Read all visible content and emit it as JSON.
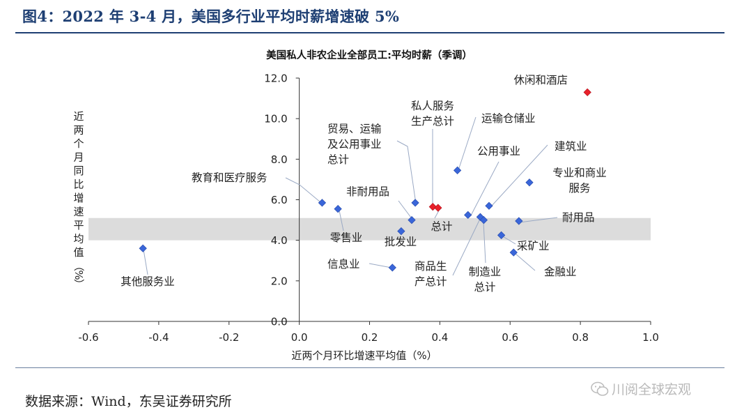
{
  "figure_title": "图4：2022 年 3-4 月，美国多行业平均时薪增速破 5%",
  "source": "数据来源：Wind，东吴证券研究所",
  "watermark": "川阅全球宏观",
  "chart_data": {
    "type": "scatter",
    "title": "美国私人非农企业全部员工:平均时薪（季调）",
    "xlabel": "近两个月环比增速平均值（%）",
    "ylabel": "近两个月同比增速平均值（%）",
    "xlim": [
      -0.6,
      1.0
    ],
    "ylim": [
      0.0,
      12.0
    ],
    "x_ticks": [
      "-0.6",
      "-0.4",
      "-0.2",
      "0.0",
      "0.2",
      "0.4",
      "0.6",
      "0.8",
      "1.0"
    ],
    "y_ticks": [
      "0.0",
      "2.0",
      "4.0",
      "6.0",
      "8.0",
      "10.0",
      "12.0"
    ],
    "band": [
      4.0,
      5.1
    ],
    "band_color": "#dcdcdc",
    "colors": {
      "normal": "#3a66d9",
      "highlight": "#e8202a"
    },
    "points": [
      {
        "label": "休闲和酒店",
        "x": 0.82,
        "y": 11.3,
        "highlight": true
      },
      {
        "label": "私人服务生产总计",
        "x": 0.38,
        "y": 5.65,
        "highlight": true
      },
      {
        "label": "总计",
        "x": 0.395,
        "y": 5.6,
        "highlight": true
      },
      {
        "label": "运输仓储业",
        "x": 0.45,
        "y": 7.45,
        "highlight": false
      },
      {
        "label": "贸易、运输及公用事业总计",
        "x": 0.33,
        "y": 5.85,
        "highlight": false
      },
      {
        "label": "非耐用品",
        "x": 0.32,
        "y": 5.0,
        "highlight": false
      },
      {
        "label": "公用事业",
        "x": 0.48,
        "y": 5.25,
        "highlight": false
      },
      {
        "label": "建筑业",
        "x": 0.54,
        "y": 5.7,
        "highlight": false
      },
      {
        "label": "专业和商业服务",
        "x": 0.655,
        "y": 6.85,
        "highlight": false
      },
      {
        "label": "教育和医疗服务",
        "x": 0.065,
        "y": 5.85,
        "highlight": false
      },
      {
        "label": "零售业",
        "x": 0.11,
        "y": 5.55,
        "highlight": false
      },
      {
        "label": "批发业",
        "x": 0.29,
        "y": 4.45,
        "highlight": false
      },
      {
        "label": "耐用品",
        "x": 0.625,
        "y": 4.95,
        "highlight": false
      },
      {
        "label": "商品生产总计",
        "x": 0.515,
        "y": 5.15,
        "highlight": false
      },
      {
        "label": "制造业总计",
        "x": 0.525,
        "y": 5.0,
        "highlight": false
      },
      {
        "label": "采矿业",
        "x": 0.575,
        "y": 4.25,
        "highlight": false
      },
      {
        "label": "金融业",
        "x": 0.61,
        "y": 3.4,
        "highlight": false
      },
      {
        "label": "信息业",
        "x": 0.265,
        "y": 2.65,
        "highlight": false
      },
      {
        "label": "其他服务业",
        "x": -0.445,
        "y": 3.6,
        "highlight": false
      }
    ]
  }
}
